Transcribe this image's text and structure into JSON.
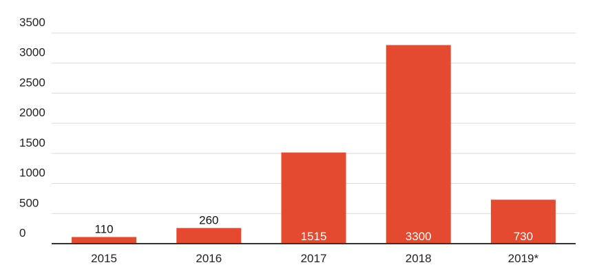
{
  "chart_data": {
    "type": "bar",
    "categories": [
      "2015",
      "2016",
      "2017",
      "2018",
      "2019*"
    ],
    "values": [
      110,
      260,
      1515,
      3300,
      730
    ],
    "color": "#e34a2f",
    "ylim": [
      0,
      3500
    ],
    "yticks": [
      0,
      500,
      1000,
      1500,
      2000,
      2500,
      3000,
      3500
    ],
    "grid": true
  }
}
